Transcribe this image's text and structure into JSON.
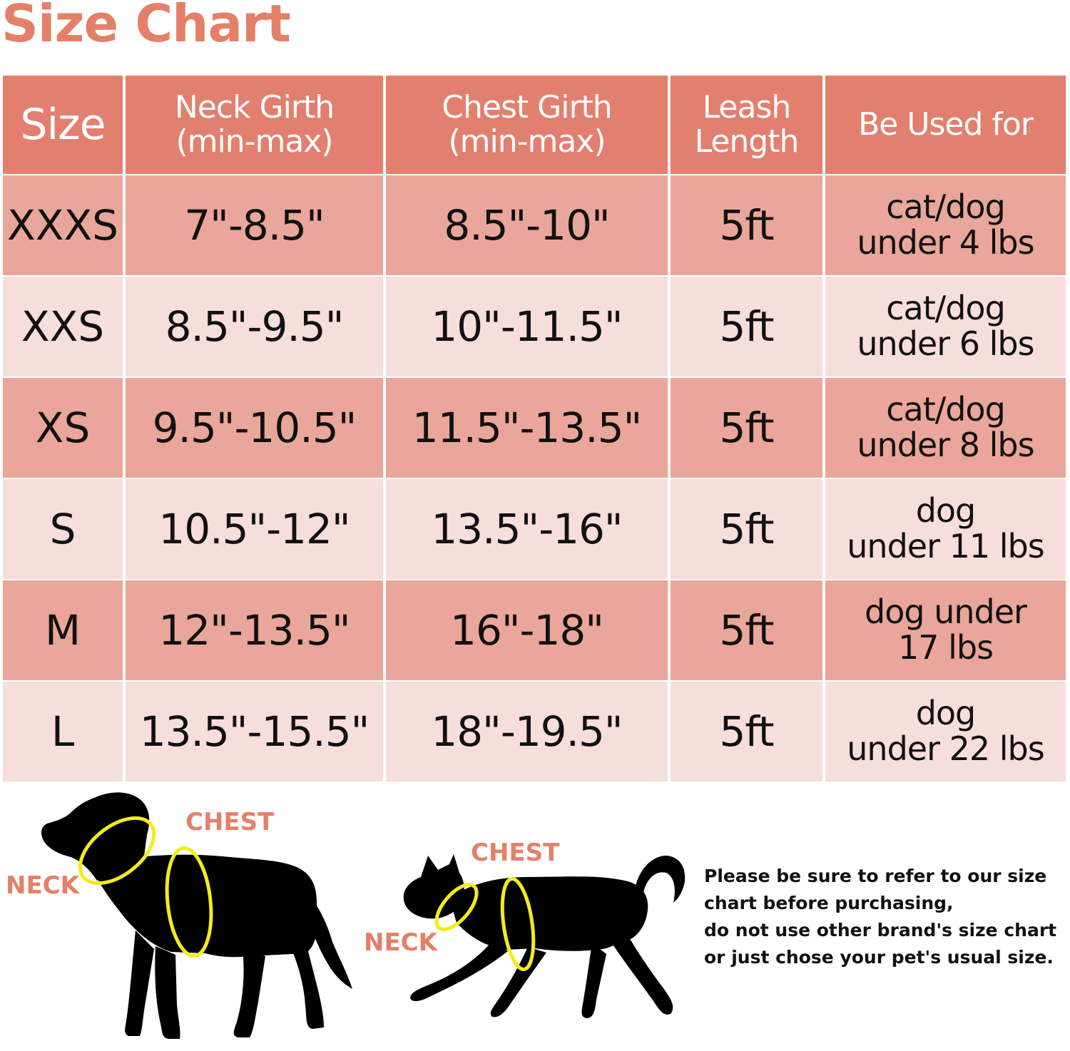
{
  "title": "Size Chart",
  "colors": {
    "header": "#e27f6f",
    "row_dark": "#eaa69b",
    "row_light": "#f6dedb",
    "accent_text": "#e48068",
    "measure_ring": "#f4ec1a"
  },
  "table": {
    "headers": [
      "Size",
      "Neck Girth\n(min-max)",
      "Chest Girth\n(min-max)",
      "Leash\nLength",
      "Be Used for"
    ],
    "rows": [
      {
        "size": "XXXS",
        "neck": "7\"-8.5\"",
        "chest": "8.5\"-10\"",
        "leash": "5ft",
        "used_for": "cat/dog\nunder 4 lbs"
      },
      {
        "size": "XXS",
        "neck": "8.5\"-9.5\"",
        "chest": "10\"-11.5\"",
        "leash": "5ft",
        "used_for": "cat/dog\nunder 6 lbs"
      },
      {
        "size": "XS",
        "neck": "9.5\"-10.5\"",
        "chest": "11.5\"-13.5\"",
        "leash": "5ft",
        "used_for": "cat/dog\nunder 8 lbs"
      },
      {
        "size": "S",
        "neck": "10.5\"-12\"",
        "chest": "13.5\"-16\"",
        "leash": "5ft",
        "used_for": "dog\nunder 11 lbs"
      },
      {
        "size": "M",
        "neck": "12\"-13.5\"",
        "chest": "16\"-18\"",
        "leash": "5ft",
        "used_for": "dog under\n17 lbs"
      },
      {
        "size": "L",
        "neck": "13.5\"-15.5\"",
        "chest": "18\"-19.5\"",
        "leash": "5ft",
        "used_for": "dog\nunder 22 lbs"
      }
    ]
  },
  "dog_diagram": {
    "neck_label": "NECK",
    "chest_label": "CHEST",
    "icon": "dog-silhouette"
  },
  "cat_diagram": {
    "neck_label": "NECK",
    "chest_label": "CHEST",
    "icon": "cat-silhouette"
  },
  "note": [
    "Please be sure to refer to our size",
    "chart before purchasing,",
    "do not use other brand's size chart",
    "or just chose your pet's usual size."
  ]
}
